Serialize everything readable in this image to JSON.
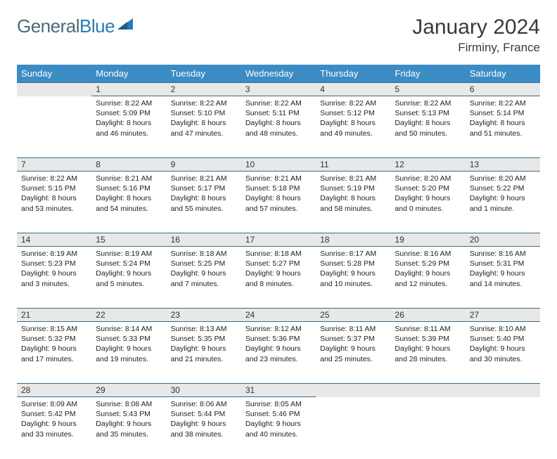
{
  "logo": {
    "part1": "General",
    "part2": "Blue"
  },
  "title": "January 2024",
  "location": "Firminy, France",
  "colors": {
    "header_bg": "#3b8bc4",
    "header_text": "#ffffff",
    "daynum_bg": "#e8e8e8",
    "border": "#3b6a8a",
    "logo_gray": "#4a6a7a",
    "logo_blue": "#2a7ab8",
    "text": "#222222"
  },
  "day_headers": [
    "Sunday",
    "Monday",
    "Tuesday",
    "Wednesday",
    "Thursday",
    "Friday",
    "Saturday"
  ],
  "weeks": [
    [
      null,
      {
        "n": "1",
        "sr": "8:22 AM",
        "ss": "5:09 PM",
        "dl": "8 hours and 46 minutes."
      },
      {
        "n": "2",
        "sr": "8:22 AM",
        "ss": "5:10 PM",
        "dl": "8 hours and 47 minutes."
      },
      {
        "n": "3",
        "sr": "8:22 AM",
        "ss": "5:11 PM",
        "dl": "8 hours and 48 minutes."
      },
      {
        "n": "4",
        "sr": "8:22 AM",
        "ss": "5:12 PM",
        "dl": "8 hours and 49 minutes."
      },
      {
        "n": "5",
        "sr": "8:22 AM",
        "ss": "5:13 PM",
        "dl": "8 hours and 50 minutes."
      },
      {
        "n": "6",
        "sr": "8:22 AM",
        "ss": "5:14 PM",
        "dl": "8 hours and 51 minutes."
      }
    ],
    [
      {
        "n": "7",
        "sr": "8:22 AM",
        "ss": "5:15 PM",
        "dl": "8 hours and 53 minutes."
      },
      {
        "n": "8",
        "sr": "8:21 AM",
        "ss": "5:16 PM",
        "dl": "8 hours and 54 minutes."
      },
      {
        "n": "9",
        "sr": "8:21 AM",
        "ss": "5:17 PM",
        "dl": "8 hours and 55 minutes."
      },
      {
        "n": "10",
        "sr": "8:21 AM",
        "ss": "5:18 PM",
        "dl": "8 hours and 57 minutes."
      },
      {
        "n": "11",
        "sr": "8:21 AM",
        "ss": "5:19 PM",
        "dl": "8 hours and 58 minutes."
      },
      {
        "n": "12",
        "sr": "8:20 AM",
        "ss": "5:20 PM",
        "dl": "9 hours and 0 minutes."
      },
      {
        "n": "13",
        "sr": "8:20 AM",
        "ss": "5:22 PM",
        "dl": "9 hours and 1 minute."
      }
    ],
    [
      {
        "n": "14",
        "sr": "8:19 AM",
        "ss": "5:23 PM",
        "dl": "9 hours and 3 minutes."
      },
      {
        "n": "15",
        "sr": "8:19 AM",
        "ss": "5:24 PM",
        "dl": "9 hours and 5 minutes."
      },
      {
        "n": "16",
        "sr": "8:18 AM",
        "ss": "5:25 PM",
        "dl": "9 hours and 7 minutes."
      },
      {
        "n": "17",
        "sr": "8:18 AM",
        "ss": "5:27 PM",
        "dl": "9 hours and 8 minutes."
      },
      {
        "n": "18",
        "sr": "8:17 AM",
        "ss": "5:28 PM",
        "dl": "9 hours and 10 minutes."
      },
      {
        "n": "19",
        "sr": "8:16 AM",
        "ss": "5:29 PM",
        "dl": "9 hours and 12 minutes."
      },
      {
        "n": "20",
        "sr": "8:16 AM",
        "ss": "5:31 PM",
        "dl": "9 hours and 14 minutes."
      }
    ],
    [
      {
        "n": "21",
        "sr": "8:15 AM",
        "ss": "5:32 PM",
        "dl": "9 hours and 17 minutes."
      },
      {
        "n": "22",
        "sr": "8:14 AM",
        "ss": "5:33 PM",
        "dl": "9 hours and 19 minutes."
      },
      {
        "n": "23",
        "sr": "8:13 AM",
        "ss": "5:35 PM",
        "dl": "9 hours and 21 minutes."
      },
      {
        "n": "24",
        "sr": "8:12 AM",
        "ss": "5:36 PM",
        "dl": "9 hours and 23 minutes."
      },
      {
        "n": "25",
        "sr": "8:11 AM",
        "ss": "5:37 PM",
        "dl": "9 hours and 25 minutes."
      },
      {
        "n": "26",
        "sr": "8:11 AM",
        "ss": "5:39 PM",
        "dl": "9 hours and 28 minutes."
      },
      {
        "n": "27",
        "sr": "8:10 AM",
        "ss": "5:40 PM",
        "dl": "9 hours and 30 minutes."
      }
    ],
    [
      {
        "n": "28",
        "sr": "8:09 AM",
        "ss": "5:42 PM",
        "dl": "9 hours and 33 minutes."
      },
      {
        "n": "29",
        "sr": "8:08 AM",
        "ss": "5:43 PM",
        "dl": "9 hours and 35 minutes."
      },
      {
        "n": "30",
        "sr": "8:06 AM",
        "ss": "5:44 PM",
        "dl": "9 hours and 38 minutes."
      },
      {
        "n": "31",
        "sr": "8:05 AM",
        "ss": "5:46 PM",
        "dl": "9 hours and 40 minutes."
      },
      null,
      null,
      null
    ]
  ],
  "labels": {
    "sunrise": "Sunrise:",
    "sunset": "Sunset:",
    "daylight": "Daylight:"
  }
}
